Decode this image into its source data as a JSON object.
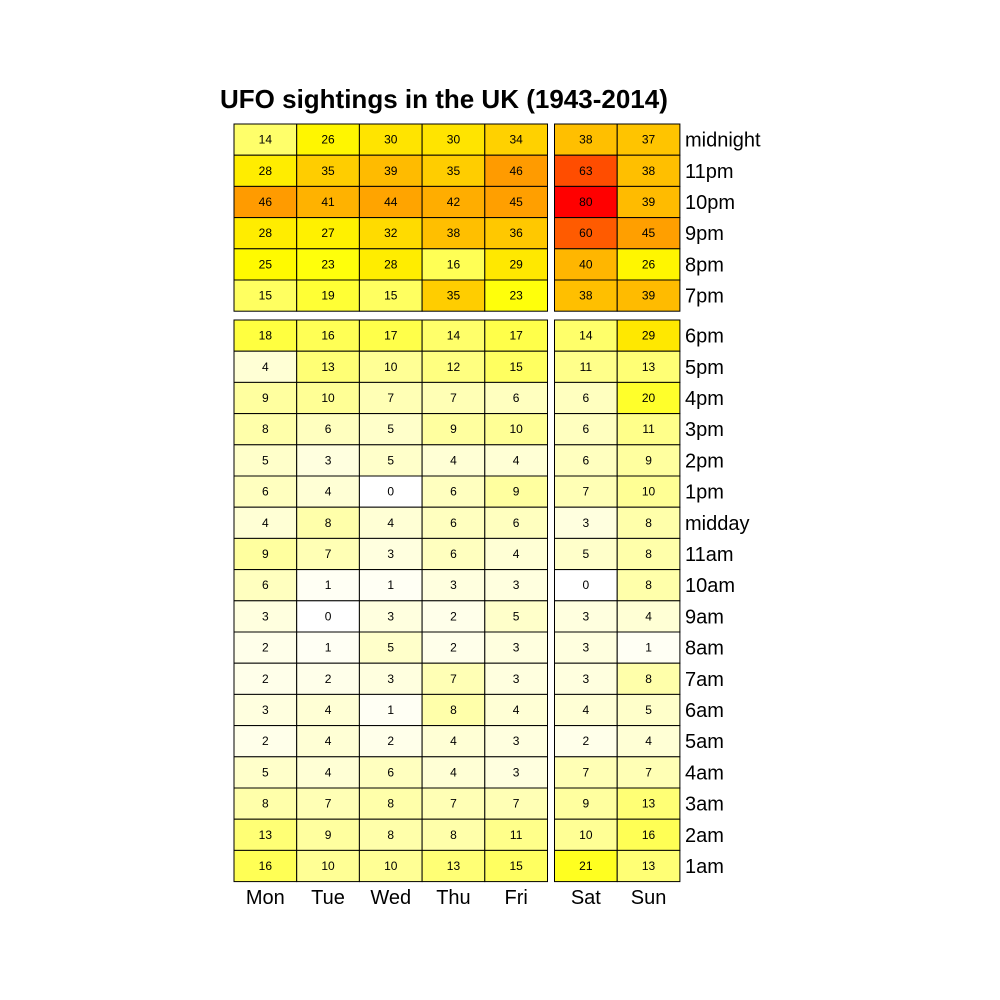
{
  "chart_data": {
    "type": "heatmap",
    "title": "UFO sightings in the UK (1943-2014)",
    "columns": [
      "Mon",
      "Tue",
      "Wed",
      "Thu",
      "Fri",
      "Sat",
      "Sun"
    ],
    "column_groups": [
      [
        "Mon",
        "Tue",
        "Wed",
        "Thu",
        "Fri"
      ],
      [
        "Sat",
        "Sun"
      ]
    ],
    "row_groups": [
      [
        "midnight",
        "11pm",
        "10pm",
        "9pm",
        "8pm",
        "7pm"
      ],
      [
        "6pm",
        "5pm",
        "4pm",
        "3pm",
        "2pm",
        "1pm",
        "midday",
        "11am",
        "10am",
        "9am",
        "8am",
        "7am",
        "6am",
        "5am",
        "4am",
        "3am",
        "2am",
        "1am"
      ]
    ],
    "rows": [
      "midnight",
      "11pm",
      "10pm",
      "9pm",
      "8pm",
      "7pm",
      "6pm",
      "5pm",
      "4pm",
      "3pm",
      "2pm",
      "1pm",
      "midday",
      "11am",
      "10am",
      "9am",
      "8am",
      "7am",
      "6am",
      "5am",
      "4am",
      "3am",
      "2am",
      "1am"
    ],
    "values": [
      [
        14,
        26,
        30,
        30,
        34,
        38,
        37
      ],
      [
        28,
        35,
        39,
        35,
        46,
        63,
        38
      ],
      [
        46,
        41,
        44,
        42,
        45,
        80,
        39
      ],
      [
        28,
        27,
        32,
        38,
        36,
        60,
        45
      ],
      [
        25,
        23,
        28,
        16,
        29,
        40,
        26
      ],
      [
        15,
        19,
        15,
        35,
        23,
        38,
        39
      ],
      [
        18,
        16,
        17,
        14,
        17,
        14,
        29
      ],
      [
        4,
        13,
        10,
        12,
        15,
        11,
        13
      ],
      [
        9,
        10,
        7,
        7,
        6,
        6,
        20
      ],
      [
        8,
        6,
        5,
        9,
        10,
        6,
        11
      ],
      [
        5,
        3,
        5,
        4,
        4,
        6,
        9
      ],
      [
        6,
        4,
        0,
        6,
        9,
        7,
        10
      ],
      [
        4,
        8,
        4,
        6,
        6,
        3,
        8
      ],
      [
        9,
        7,
        3,
        6,
        4,
        5,
        8
      ],
      [
        6,
        1,
        1,
        3,
        3,
        0,
        8
      ],
      [
        3,
        0,
        3,
        2,
        5,
        3,
        4
      ],
      [
        2,
        1,
        5,
        2,
        3,
        3,
        1
      ],
      [
        2,
        2,
        3,
        7,
        3,
        3,
        8
      ],
      [
        3,
        4,
        1,
        8,
        4,
        4,
        5
      ],
      [
        2,
        4,
        2,
        4,
        3,
        2,
        4
      ],
      [
        5,
        4,
        6,
        4,
        3,
        7,
        7
      ],
      [
        8,
        7,
        8,
        7,
        7,
        9,
        13
      ],
      [
        13,
        9,
        8,
        8,
        11,
        10,
        16
      ],
      [
        16,
        10,
        10,
        13,
        15,
        21,
        13
      ]
    ],
    "colors": {
      "low": "#ffffff",
      "mid": "#ffff00",
      "high": "#ff0000"
    },
    "legend": "none"
  }
}
